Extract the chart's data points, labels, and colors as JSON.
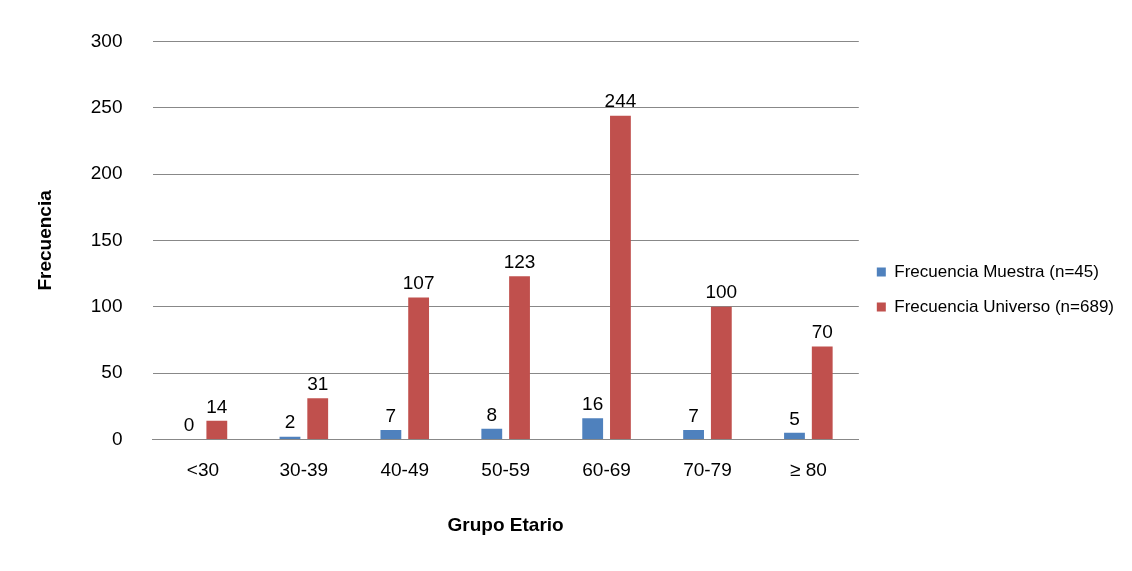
{
  "chart_data": {
    "type": "bar",
    "xlabel": "Grupo Etario",
    "ylabel": "Frecuencia",
    "categories": [
      "<30",
      "30-39",
      "40-49",
      "50-59",
      "60-69",
      "70-79",
      "≥ 80"
    ],
    "series": [
      {
        "name": "Frecuencia Muestra (n=45)",
        "color": "#4f81bd",
        "values": [
          0,
          2,
          7,
          8,
          16,
          7,
          5
        ]
      },
      {
        "name": "Frecuencia Universo (n=689)",
        "color": "#c0504d",
        "values": [
          14,
          31,
          107,
          123,
          244,
          100,
          70
        ]
      }
    ],
    "ylim": [
      0,
      300
    ],
    "yticks": [
      0,
      50,
      100,
      150,
      200,
      250,
      300
    ],
    "grid": "y",
    "legend": "right",
    "data_labels": true
  }
}
